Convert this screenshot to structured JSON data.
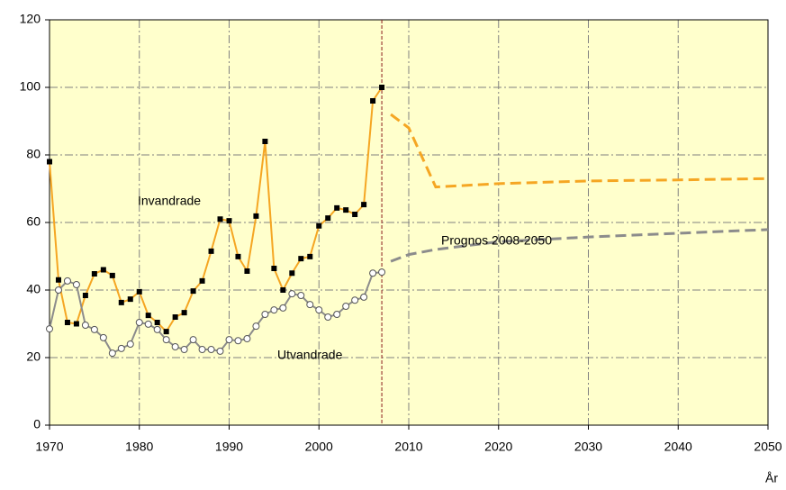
{
  "chart_data": {
    "type": "line",
    "x_label": "År",
    "xlim": [
      1970,
      2050
    ],
    "ylim": [
      0,
      120
    ],
    "xticks": [
      1970,
      1980,
      1990,
      2000,
      2010,
      2020,
      2030,
      2040,
      2050
    ],
    "yticks": [
      0,
      20,
      40,
      60,
      80,
      100,
      120
    ],
    "grid": true,
    "background": "#ffffcc",
    "x": [
      1970,
      1971,
      1972,
      1973,
      1974,
      1975,
      1976,
      1977,
      1978,
      1979,
      1980,
      1981,
      1982,
      1983,
      1984,
      1985,
      1986,
      1987,
      1988,
      1989,
      1990,
      1991,
      1992,
      1993,
      1994,
      1995,
      1996,
      1997,
      1998,
      1999,
      2000,
      2001,
      2002,
      2003,
      2004,
      2005,
      2006,
      2007
    ],
    "series": [
      {
        "name": "Invandrade",
        "color": "#f5a623",
        "marker": "square",
        "values": [
          78,
          43,
          30.4,
          30,
          38.4,
          44.8,
          46,
          44.3,
          36.3,
          37.3,
          39.5,
          32.5,
          30.4,
          27.7,
          32,
          33.3,
          39.7,
          42.7,
          51.5,
          61,
          60.5,
          49.9,
          45.6,
          61.9,
          84,
          46.4,
          40,
          45,
          49.3,
          49.9,
          59,
          61.3,
          64.3,
          63.7,
          62.4,
          65.3,
          96,
          100
        ]
      },
      {
        "name": "Utvandrade",
        "color": "#8c8c8c",
        "marker": "circle",
        "values": [
          28.5,
          40,
          42.7,
          41.6,
          29.6,
          28.3,
          25.9,
          21.3,
          22.7,
          24,
          30.4,
          29.9,
          28.3,
          25.3,
          23.2,
          22.4,
          25.3,
          22.4,
          22.4,
          21.9,
          25.3,
          25,
          25.6,
          29.3,
          32.8,
          34.1,
          34.7,
          38.9,
          38.4,
          35.7,
          34.1,
          32,
          32.8,
          35.2,
          37,
          37.9,
          45,
          45.3
        ]
      }
    ],
    "forecast": {
      "label": "Prognos 2008-2050",
      "x": [
        2008,
        2010,
        2013,
        2020,
        2030,
        2040,
        2050
      ],
      "series": [
        {
          "color": "#f5a623",
          "values": [
            92,
            88,
            70.5,
            71.5,
            72.3,
            72.6,
            73
          ]
        },
        {
          "color": "#8c8c8c",
          "values": [
            48.5,
            50.5,
            52,
            54.3,
            55.7,
            56.8,
            57.9
          ]
        }
      ]
    },
    "vline": {
      "x": 2007,
      "color": "#8b1a1a"
    }
  }
}
